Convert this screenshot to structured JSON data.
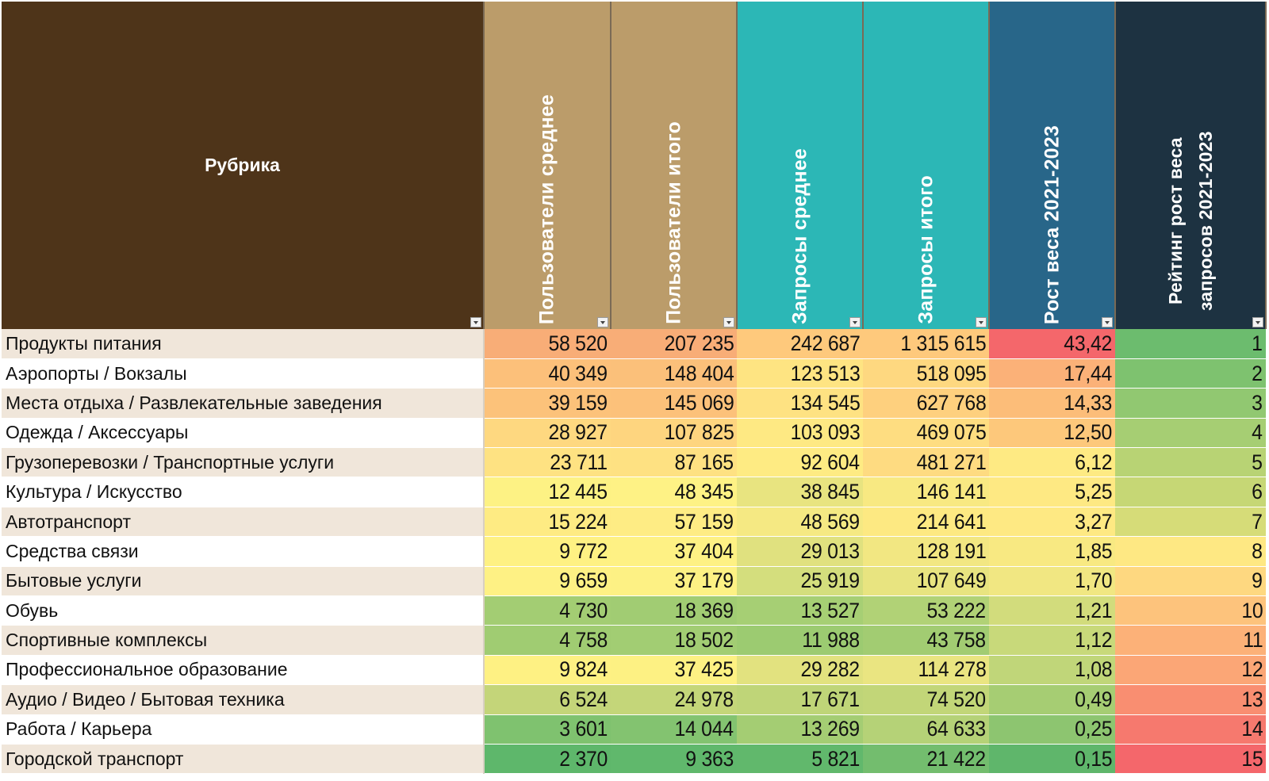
{
  "headers": [
    {
      "label": "Рубрика",
      "color": "#4e3419"
    },
    {
      "label": "Пользователи среднее",
      "color": "#bb9c6a"
    },
    {
      "label": "Пользователи итого",
      "color": "#bb9c6a"
    },
    {
      "label": "Запросы среднее",
      "color": "#2cb7b6"
    },
    {
      "label": "Запросы итого",
      "color": "#2cb7b6"
    },
    {
      "label": "Рост веса 2021-2023",
      "color": "#286689"
    },
    {
      "label": "Рейтинг рост веса запросов 2021-2023",
      "color": "#1d3241"
    }
  ],
  "rows": [
    {
      "name": "Продукты питания",
      "values": [
        "58 520",
        "207 235",
        "242 687",
        "1 315 615",
        "43,42",
        "1"
      ]
    },
    {
      "name": "Аэропорты / Вокзалы",
      "values": [
        "40 349",
        "148 404",
        "123 513",
        "518 095",
        "17,44",
        "2"
      ]
    },
    {
      "name": "Места отдыха / Развлекательные заведения",
      "values": [
        "39 159",
        "145 069",
        "134 545",
        "627 768",
        "14,33",
        "3"
      ]
    },
    {
      "name": "Одежда / Аксессуары",
      "values": [
        "28 927",
        "107 825",
        "103 093",
        "469 075",
        "12,50",
        "4"
      ]
    },
    {
      "name": "Грузоперевозки / Транспортные услуги",
      "values": [
        "23 711",
        "87 165",
        "92 604",
        "481 271",
        "6,12",
        "5"
      ]
    },
    {
      "name": "Культура / Искусство",
      "values": [
        "12 445",
        "48 345",
        "38 845",
        "146 141",
        "5,25",
        "6"
      ]
    },
    {
      "name": "Автотранспорт",
      "values": [
        "15 224",
        "57 159",
        "48 569",
        "214 641",
        "3,27",
        "7"
      ]
    },
    {
      "name": "Средства связи",
      "values": [
        "9 772",
        "37 404",
        "29 013",
        "128 191",
        "1,85",
        "8"
      ]
    },
    {
      "name": "Бытовые услуги",
      "values": [
        "9 659",
        "37 179",
        "25 919",
        "107 649",
        "1,70",
        "9"
      ]
    },
    {
      "name": "Обувь",
      "values": [
        "4 730",
        "18 369",
        "13 527",
        "53 222",
        "1,21",
        "10"
      ]
    },
    {
      "name": "Спортивные комплексы",
      "values": [
        "4 758",
        "18 502",
        "11 988",
        "43 758",
        "1,12",
        "11"
      ]
    },
    {
      "name": "Профессиональное образование",
      "values": [
        "9 824",
        "37 425",
        "29 282",
        "114 278",
        "1,08",
        "12"
      ]
    },
    {
      "name": "Аудио / Видео / Бытовая техника",
      "values": [
        "6 524",
        "24 978",
        "17 671",
        "74 520",
        "0,49",
        "13"
      ]
    },
    {
      "name": "Работа / Карьера",
      "values": [
        "3 601",
        "14 044",
        "13 269",
        "64 633",
        "0,25",
        "14"
      ]
    },
    {
      "name": "Городской транспорт",
      "values": [
        "2 370",
        "9 363",
        "5 821",
        "21 422",
        "0,15",
        "15"
      ]
    }
  ],
  "cell_colors": [
    [
      "#f8ad77",
      "#f8ad77",
      "#fec97c",
      "#fec97c",
      "#f4676b",
      "#6cbc6e"
    ],
    [
      "#fcc07a",
      "#fbc07a",
      "#fee482",
      "#fed880",
      "#fbb178",
      "#7ec26f"
    ],
    [
      "#fcc27a",
      "#fcc17a",
      "#fee282",
      "#fed07e",
      "#fcbd79",
      "#91c871"
    ],
    [
      "#fed880",
      "#fed57f",
      "#fee983",
      "#fedd81",
      "#fdc87b",
      "#a6ce73"
    ],
    [
      "#fee282",
      "#fee182",
      "#feeb83",
      "#fedb81",
      "#feea83",
      "#b8d374"
    ],
    [
      "#fdf284",
      "#fef285",
      "#e8e480",
      "#f8e982",
      "#fee983",
      "#c6d775"
    ],
    [
      "#feeb83",
      "#feec84",
      "#f5e983",
      "#fde982",
      "#fee983",
      "#d6dc78"
    ],
    [
      "#fef183",
      "#fef184",
      "#e0e17f",
      "#f2e782",
      "#f8e982",
      "#fee883"
    ],
    [
      "#fef184",
      "#fdf184",
      "#d4de7d",
      "#e8e480",
      "#f1e782",
      "#fed880"
    ],
    [
      "#a3cd73",
      "#a1cc73",
      "#a6cf74",
      "#b1d276",
      "#d2dc7c",
      "#fdc37c"
    ],
    [
      "#a0cc72",
      "#a2cd73",
      "#9ccb71",
      "#a2cc72",
      "#c8d97a",
      "#fcb178"
    ],
    [
      "#fef183",
      "#fdf183",
      "#e2e27f",
      "#eae581",
      "#c0d679",
      "#fba676"
    ],
    [
      "#c4d579",
      "#c4d679",
      "#bfd578",
      "#c2d678",
      "#a6cd73",
      "#f98e71"
    ],
    [
      "#7fc26f",
      "#83c370",
      "#a4cd73",
      "#b5d277",
      "#8dc570",
      "#f6796e"
    ],
    [
      "#5eb76b",
      "#60b86c",
      "#61b86c",
      "#73bd6e",
      "#5fb66b",
      "#f4676b"
    ]
  ]
}
